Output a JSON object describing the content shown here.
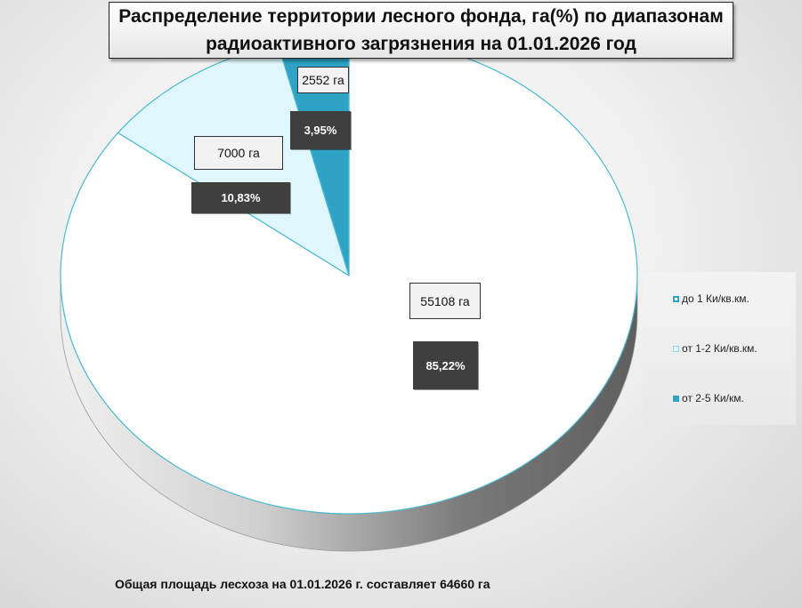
{
  "chart_data": {
    "type": "pie",
    "title": "Распределение территории лесного фонда, га(%) по диапазонам радиоактивного загрязнения на 01.01.2026 год",
    "slices": [
      {
        "name": "до 1 Ки/кв.км.",
        "value": 55108,
        "value_label": "55108 га",
        "percent_label": "85,22%",
        "color": "#ffffff"
      },
      {
        "name": "от 1-2 Ки/кв.км.",
        "value": 7000,
        "value_label": "7000 га",
        "percent_label": "10,83%",
        "color": "#dff7fc"
      },
      {
        "name": "от 2-5 Ки/км.",
        "value": 2552,
        "value_label": "2552 га",
        "percent_label": "3,95%",
        "color": "#2ea3c4"
      }
    ],
    "legend_position": "right",
    "footer": "Общая площадь лесхоза на 01.01.2026 г. составляет 64660 га"
  },
  "colors": {
    "outline": "#4bb8d1",
    "side_dark": "#6b6b6b",
    "side_light": "#e0e0e0"
  }
}
